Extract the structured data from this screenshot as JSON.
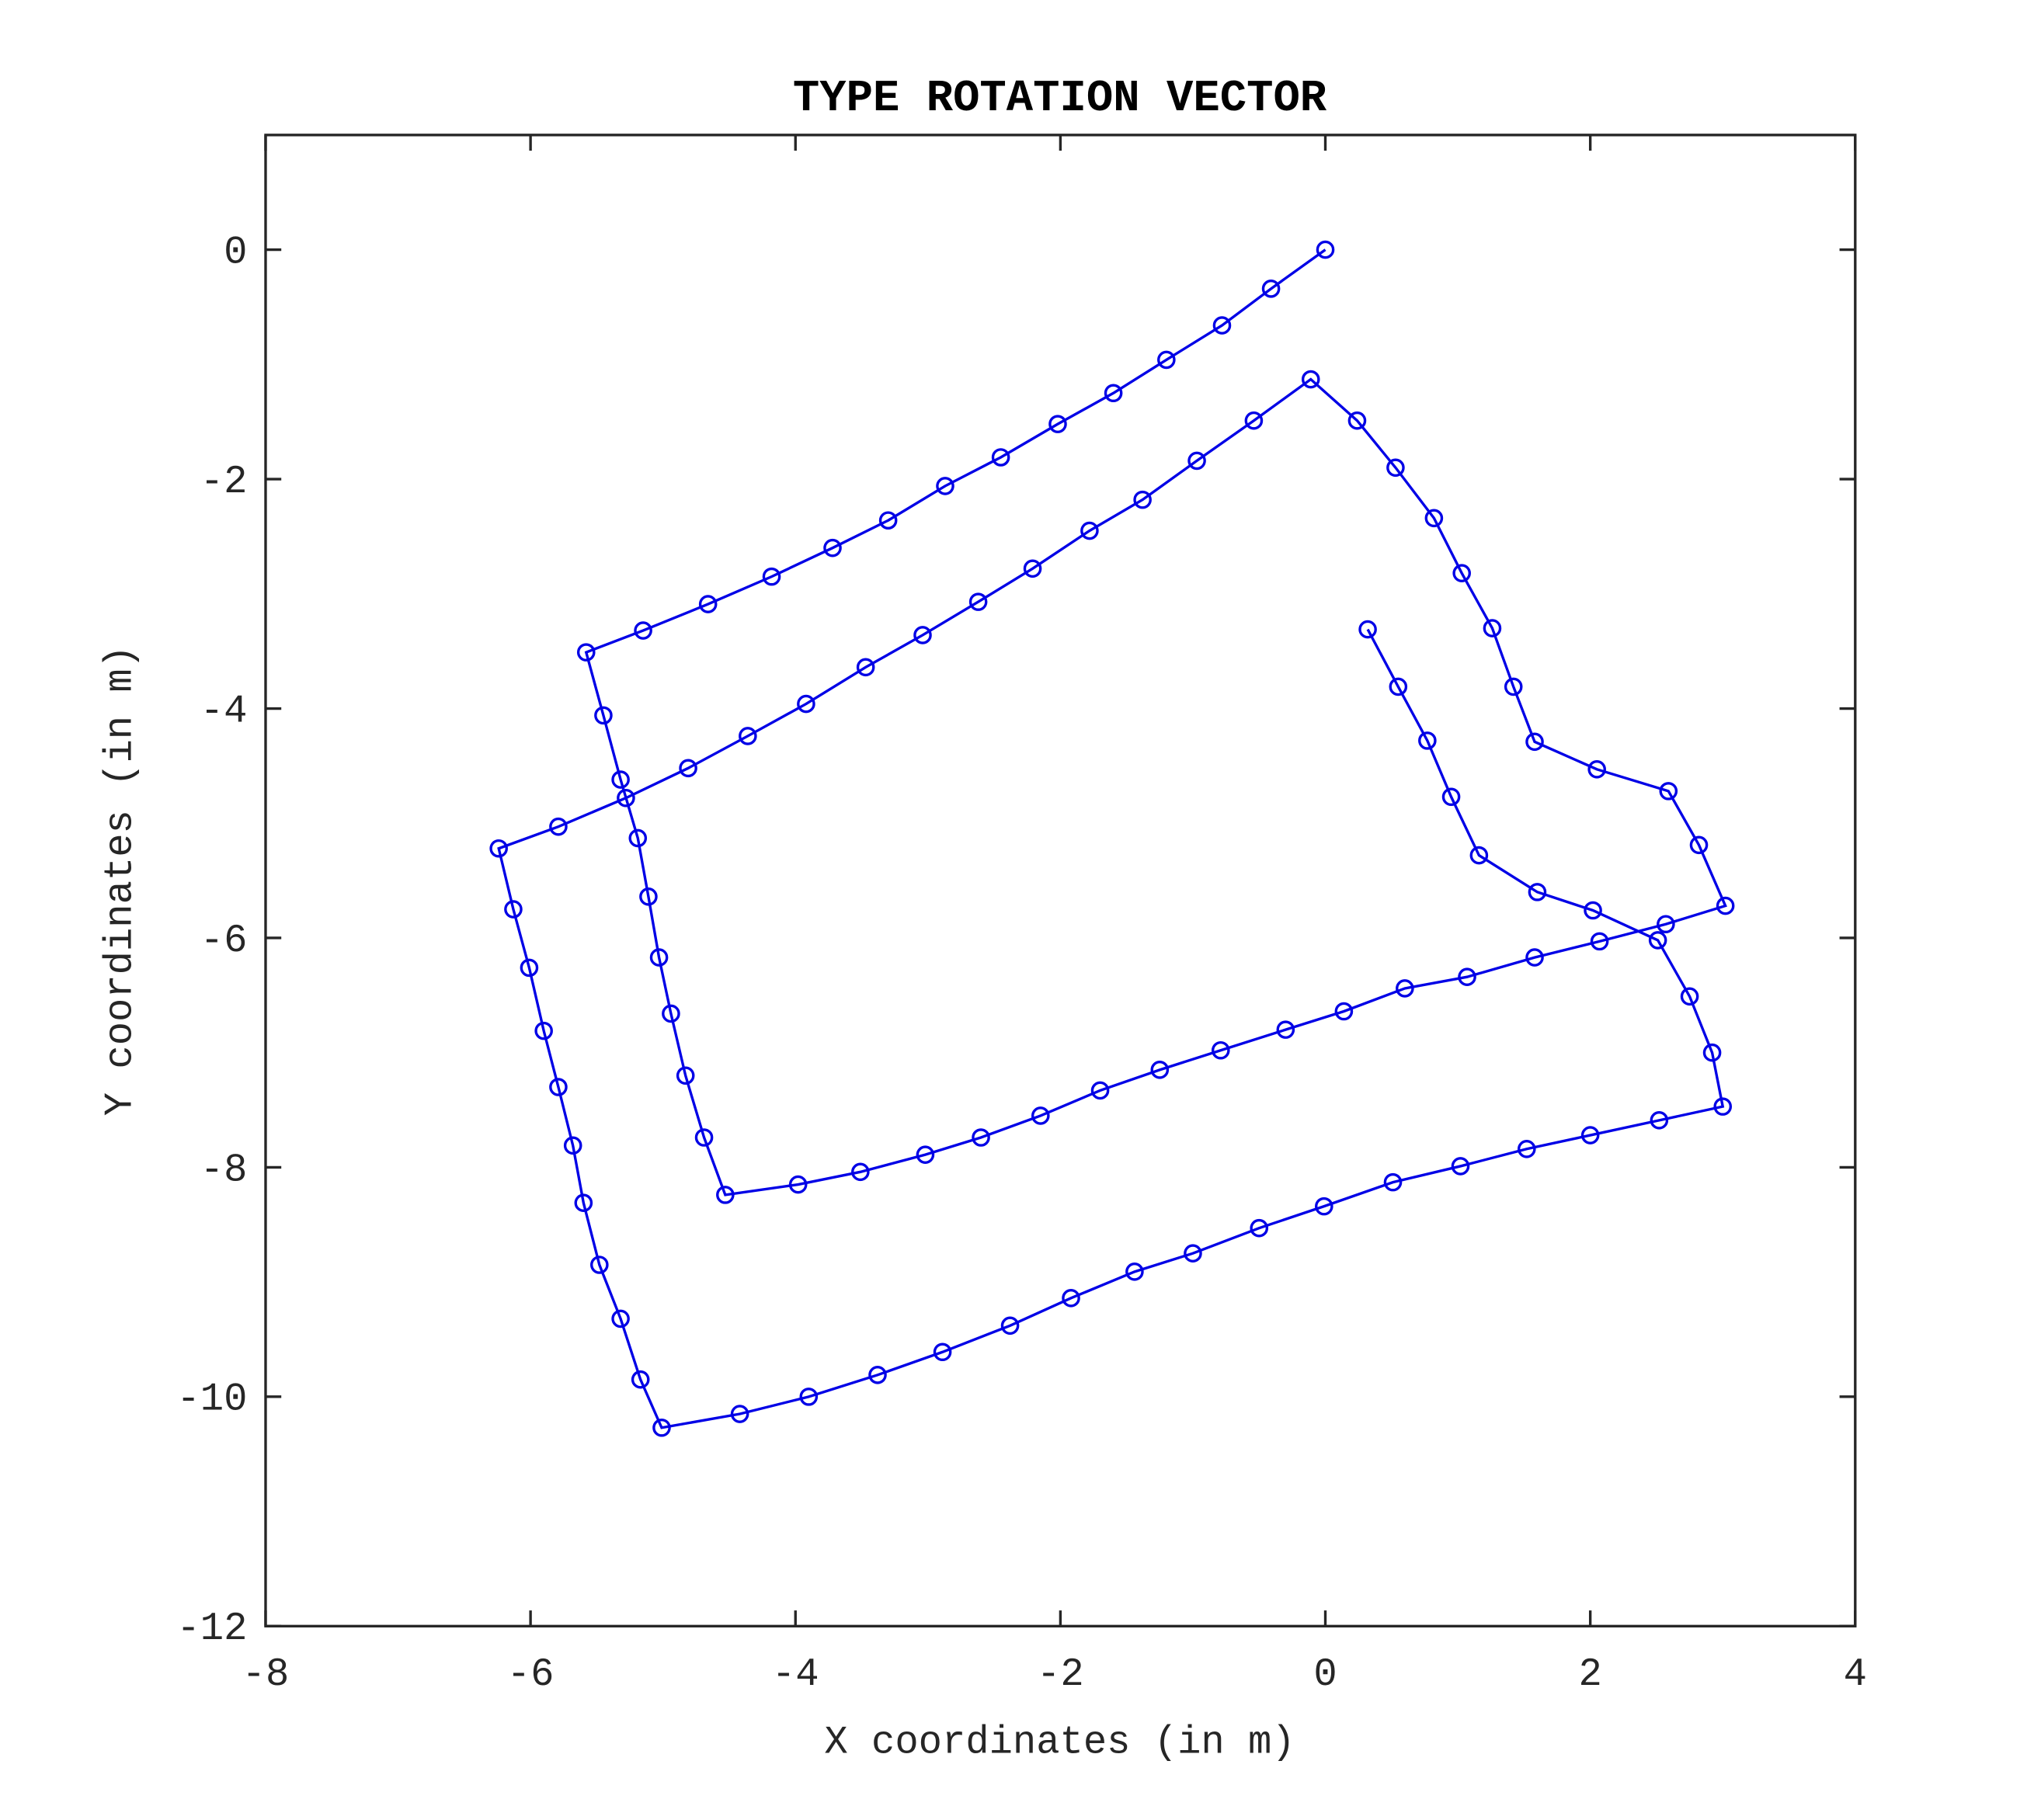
{
  "chart_data": {
    "type": "line",
    "title": "TYPE ROTATION VECTOR",
    "x_label": "X coordinates (in m)",
    "y_label": "Y coordinates (in m)",
    "series": [
      {
        "color": "#0000e6",
        "marker": "circle",
        "x": [
          0,
          -0.41,
          -0.78,
          -1.2,
          -1.6,
          -2.02,
          -2.45,
          -2.87,
          -3.3,
          -3.72,
          -4.18,
          -4.66,
          -5.15,
          -5.58,
          -5.45,
          -5.32,
          -5.19,
          -5.11,
          -5.03,
          -4.94,
          -4.83,
          -4.69,
          -4.53,
          -3.98,
          -3.51,
          -3.02,
          -2.6,
          -2.15,
          -1.7,
          -1.25,
          -0.79,
          -0.3,
          0.14,
          0.6,
          1.07,
          1.58,
          2.07,
          2.57,
          3.02,
          2.82,
          2.59,
          2.05,
          1.58,
          1.42,
          1.26,
          1.03,
          0.82,
          0.53,
          0.24,
          -0.11,
          -0.54,
          -0.97,
          -1.38,
          -1.78,
          -2.21,
          -2.62,
          -3.04,
          -3.47,
          -3.92,
          -4.36,
          -4.81,
          -5.28,
          -5.79,
          -6.24,
          -6.13,
          -6.01,
          -5.9,
          -5.79,
          -5.68,
          -5.6,
          -5.48,
          -5.32,
          -5.17,
          -5.01,
          -4.42,
          -3.9,
          -3.38,
          -2.89,
          -2.38,
          -1.92,
          -1.44,
          -1.0,
          -0.5,
          -0.01,
          0.51,
          1.02,
          1.52,
          2.0,
          2.52,
          3.0,
          2.92,
          2.75,
          2.51,
          2.02,
          1.6,
          1.16,
          0.95,
          0.77,
          0.55,
          0.32
        ],
        "values": [
          0,
          -0.34,
          -0.66,
          -0.96,
          -1.25,
          -1.52,
          -1.81,
          -2.06,
          -2.36,
          -2.6,
          -2.85,
          -3.09,
          -3.32,
          -3.51,
          -4.06,
          -4.62,
          -5.13,
          -5.64,
          -6.17,
          -6.66,
          -7.2,
          -7.74,
          -8.24,
          -8.15,
          -8.04,
          -7.89,
          -7.74,
          -7.55,
          -7.33,
          -7.15,
          -6.98,
          -6.8,
          -6.64,
          -6.44,
          -6.34,
          -6.17,
          -6.03,
          -5.88,
          -5.72,
          -5.19,
          -4.72,
          -4.53,
          -4.29,
          -3.81,
          -3.3,
          -2.82,
          -2.34,
          -1.9,
          -1.49,
          -1.13,
          -1.49,
          -1.84,
          -2.18,
          -2.45,
          -2.78,
          -3.07,
          -3.36,
          -3.64,
          -3.96,
          -4.24,
          -4.52,
          -4.78,
          -5.03,
          -5.22,
          -5.75,
          -6.26,
          -6.81,
          -7.3,
          -7.81,
          -8.31,
          -8.85,
          -9.32,
          -9.85,
          -10.27,
          -10.15,
          -10.0,
          -9.81,
          -9.61,
          -9.38,
          -9.14,
          -8.91,
          -8.75,
          -8.53,
          -8.34,
          -8.13,
          -7.99,
          -7.84,
          -7.72,
          -7.59,
          -7.47,
          -7.0,
          -6.51,
          -6.02,
          -5.76,
          -5.6,
          -5.28,
          -4.77,
          -4.28,
          -3.81,
          -3.31
        ]
      }
    ],
    "xlim": [
      -8,
      4
    ],
    "xticks": [
      -8,
      -6,
      -4,
      -2,
      0,
      2,
      4
    ],
    "ylim": [
      -12,
      1
    ],
    "yticks": [
      -12,
      -10,
      -8,
      -6,
      -4,
      -2,
      0
    ]
  }
}
